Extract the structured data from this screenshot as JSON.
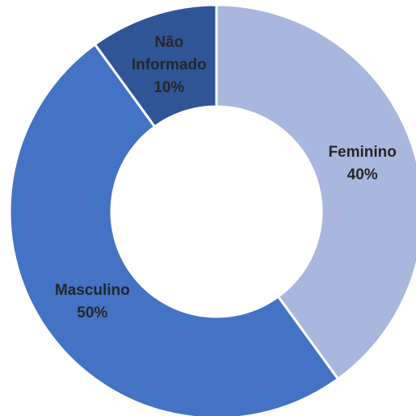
{
  "chart_data": {
    "type": "donut",
    "categories": [
      "Feminino",
      "Masculino",
      "Não Informado"
    ],
    "values": [
      40,
      50,
      10
    ],
    "value_labels": [
      "40%",
      "50%",
      "10%"
    ],
    "colors": [
      "#a9b7de",
      "#4472c4",
      "#2f5597"
    ]
  }
}
